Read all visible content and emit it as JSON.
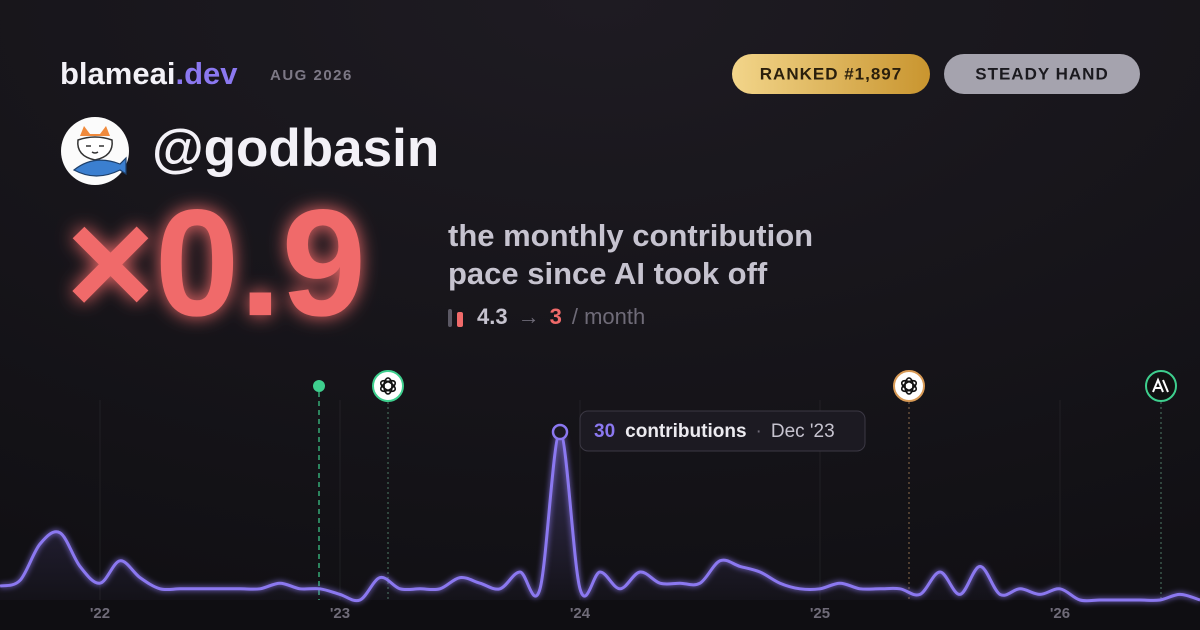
{
  "header": {
    "brand": "blameai",
    "brand_suffix": ".dev",
    "date": "AUG 2026",
    "badges": [
      "RANKED #1,897",
      "STEADY HAND"
    ]
  },
  "user": {
    "handle": "@godbasin"
  },
  "score": {
    "multiplier": "×0.9",
    "caption": [
      "the monthly contribution",
      "pace since AI took off"
    ],
    "before": 4.3,
    "arrow": "→",
    "after": 3,
    "unit": "/ month"
  },
  "chart_data": {
    "type": "line",
    "categories": [
      null,
      null,
      null,
      null,
      null,
      "'22",
      null,
      null,
      null,
      null,
      null,
      null,
      null,
      null,
      null,
      null,
      null,
      "'23",
      null,
      null,
      null,
      null,
      null,
      null,
      null,
      null,
      null,
      null,
      null,
      "'24",
      null,
      null,
      null,
      null,
      null,
      null,
      null,
      null,
      null,
      null,
      null,
      "'25",
      null,
      null,
      null,
      null,
      null,
      null,
      null,
      null,
      null,
      null,
      null,
      "'26",
      null,
      null,
      null,
      null,
      null,
      null,
      null
    ],
    "values": [
      2.5,
      3.5,
      10,
      12,
      6,
      3,
      7,
      4,
      2,
      2,
      2,
      2,
      2,
      2,
      3,
      2,
      2,
      1,
      0,
      4,
      2,
      2,
      2,
      4,
      3,
      2,
      5,
      2,
      30,
      2,
      5,
      2,
      5,
      3,
      3,
      3,
      7,
      6,
      5,
      3,
      2,
      2,
      3,
      2,
      2,
      2,
      1,
      5,
      1,
      6,
      1,
      2,
      1,
      2,
      0,
      0,
      0,
      0,
      0,
      1,
      0
    ],
    "color": "#8b78f0",
    "ylim": [
      0,
      30
    ],
    "tooltip": {
      "label": "contributions",
      "date": "Dec '23"
    }
  }
}
